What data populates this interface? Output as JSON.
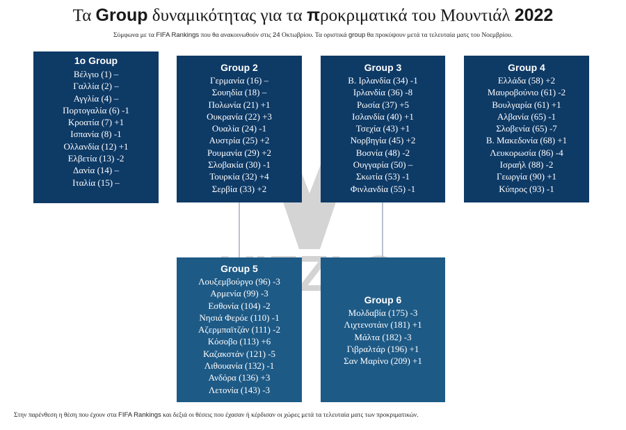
{
  "header": {
    "title_pre": "Τα",
    "title_group": "Group",
    "title_mid": "δυναμικότητας για τα",
    "title_p": "π",
    "title_post": "ροκριματικά του Μουντιάλ",
    "title_year": "2022",
    "subtitle_1": "Σύμφωνα με τα",
    "subtitle_fifa": "FIFA Rankings",
    "subtitle_2": "που θα ανακοινωθούν στις",
    "subtitle_24": "24",
    "subtitle_3": "Οκτωβρίου. Τα οριστικά",
    "subtitle_group": "group",
    "subtitle_4": "θα προκύψουν μετά τα τελευταία ματς του Νοεμβρίου."
  },
  "groups": [
    {
      "title": "1o Group",
      "teams": [
        "Βέλγιο (1) –",
        "Γαλλία (2) –",
        "Αγγλία (4) –",
        "Πορτογαλία (6) -1",
        "Κροατία (7) +1",
        "Ισπανία (8) -1",
        "Ολλανδία (12) +1",
        "Ελβετία (13) -2",
        "Δανία (14) –",
        "Ιταλία (15) –"
      ]
    },
    {
      "title": "Group 2",
      "teams": [
        "Γερμανία (16) –",
        "Σουηδία (18) –",
        "Πολωνία (21) +1",
        "Ουκρανία (22) +3",
        "Ουαλία (24) -1",
        "Αυστρία (25) +2",
        "Ρουμανία (29) +2",
        "Σλοβακία (30) -1",
        "Τουρκία (32) +4",
        "Σερβία (33) +2"
      ]
    },
    {
      "title": "Group 3",
      "teams": [
        "Β. Ιρλανδία (34) -1",
        "Ιρλανδία (36) -8",
        "Ρωσία (37) +5",
        "Ισλανδία (40) +1",
        "Τσεχία (43) +1",
        "Νορβηγία (45) +2",
        "Βοσνία (48) -2",
        "Ουγγαρία (50) –",
        "Σκωτία (53) -1",
        "Φινλανδία (55) -1"
      ]
    },
    {
      "title": "Group 4",
      "teams": [
        "Ελλάδα (58) +2",
        "Μαυροβούνιο (61) -2",
        "Βουλγαρία (61) +1",
        "Αλβανία (65) -1",
        "Σλοβενία (65) -7",
        "Β. Μακεδονία (68) +1",
        "Λευκορωσία (86) -4",
        "Ισραήλ (88) -2",
        "Γεωργία (90) +1",
        "Κύπρος (93) -1"
      ]
    },
    {
      "title": "Group 5",
      "teams": [
        "Λουξεμβούργο (96) -3",
        "Αρμενία (99) -3",
        "Εσθονία (104) -2",
        "Νησιά Φερόε (110) -1",
        "Αζερμπαϊτζάν (111) -2",
        "Κόσοβο (113) +6",
        "Καζακστάν (121) -5",
        "Λιθουανία (132) -1",
        "Ανδόρα (136) +3",
        "Λετονία (143) -3"
      ]
    },
    {
      "title": "Group 6",
      "teams": [
        "Μολδαβία (175) -3",
        "Λιχτενστάιν (181) +1",
        "Μάλτα (182) -3",
        "Γιβραλτάρ (196) +1",
        "Σαν Μαρίνο (209) +1"
      ]
    }
  ],
  "footer": {
    "text_1": "Στην παρένθεση η θέση που έχουν στα",
    "text_fifa": "FIFA Rankings",
    "text_2": "και δεξιά οι θέσεις που έχασαν ή κέρδισαν οι χώρες μετά τα τελευταία ματς των προκριματικών."
  },
  "watermark": {
    "text": "VIZZLO"
  },
  "colors": {
    "dark": "#0e3a66",
    "medium": "#1e5a86",
    "connector": "#b9c3cf",
    "watermark": "#b0b0b0"
  }
}
